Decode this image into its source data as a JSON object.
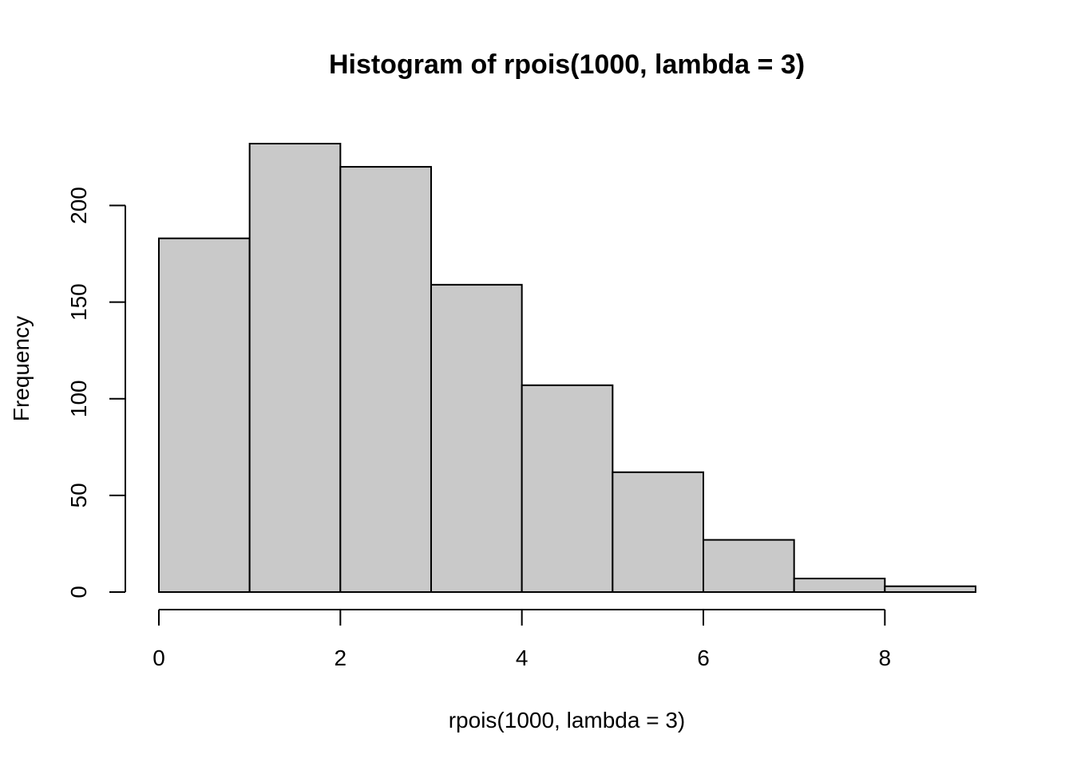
{
  "chart_data": {
    "type": "bar",
    "title": "Histogram of rpois(1000, lambda = 3)",
    "xlabel": "rpois(1000, lambda = 3)",
    "ylabel": "Frequency",
    "bin_edges": [
      0,
      1,
      2,
      3,
      4,
      5,
      6,
      7,
      8,
      9
    ],
    "values": [
      183,
      232,
      220,
      159,
      107,
      62,
      27,
      7,
      3
    ],
    "x_ticks": [
      0,
      2,
      4,
      6,
      8
    ],
    "x_tick_labels": [
      "0",
      "2",
      "4",
      "6",
      "8"
    ],
    "y_ticks": [
      0,
      50,
      100,
      150,
      200
    ],
    "y_tick_labels": [
      "0",
      "50",
      "100",
      "150",
      "200"
    ],
    "xlim": [
      0,
      9
    ],
    "ylim": [
      0,
      232
    ],
    "grid": false,
    "bar_color": "#c9c9c9"
  }
}
